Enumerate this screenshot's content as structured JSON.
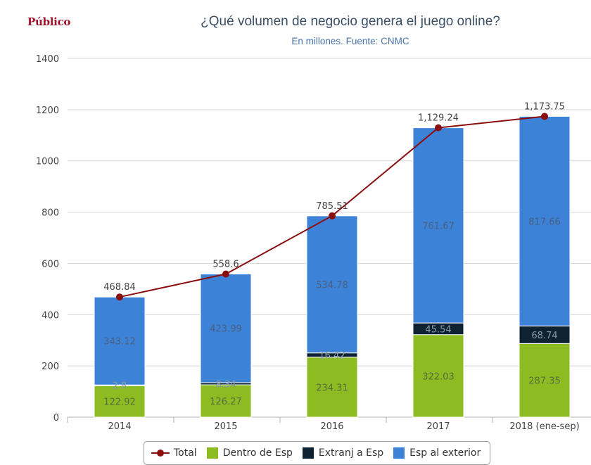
{
  "header": {
    "logo": "Público",
    "title": "¿Qué volumen de negocio genera el juego online?",
    "subtitle": "En millones. Fuente: CNMC"
  },
  "colors": {
    "dentro": "#8cbb22",
    "extranj": "#0d2233",
    "exterior": "#3c82d7",
    "total": "#8b0e0e",
    "grid": "#d4d4d4"
  },
  "chart_data": {
    "type": "bar",
    "stacked": true,
    "categories": [
      "2014",
      "2015",
      "2016",
      "2017",
      "2018 (ene-sep)"
    ],
    "series": [
      {
        "name": "Dentro de Esp",
        "values": [
          122.92,
          126.27,
          234.31,
          322.03,
          287.35
        ],
        "labels": [
          "122.92",
          "126.27",
          "234.31",
          "322.03",
          "287.35"
        ]
      },
      {
        "name": "Extranj a Esp",
        "values": [
          2.8,
          8.34,
          16.42,
          45.54,
          68.74
        ],
        "labels": [
          "2.8",
          "8.34",
          "16.42",
          "45.54",
          "68.74"
        ]
      },
      {
        "name": "Esp al exterior",
        "values": [
          343.12,
          423.99,
          534.78,
          761.67,
          817.66
        ],
        "labels": [
          "343.12",
          "423.99",
          "534.78",
          "761.67",
          "817.66"
        ]
      }
    ],
    "line": {
      "name": "Total",
      "values": [
        468.84,
        558.6,
        785.51,
        1129.24,
        1173.75
      ],
      "labels": [
        "468.84",
        "558.6",
        "785.51",
        "1,129.24",
        "1,173.75"
      ]
    },
    "ylim": [
      0,
      1400
    ],
    "yticks": [
      "0",
      "200",
      "400",
      "600",
      "800",
      "1000",
      "1200",
      "1400"
    ],
    "ytick_values": [
      0,
      200,
      400,
      600,
      800,
      1000,
      1200,
      1400
    ],
    "grid": true,
    "legend_position": "bottom-center"
  },
  "legend": {
    "items": [
      "Total",
      "Dentro de Esp",
      "Extranj a Esp",
      "Esp al exterior"
    ]
  }
}
